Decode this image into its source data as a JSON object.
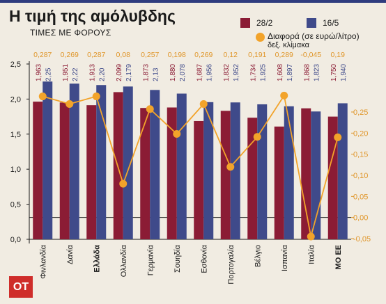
{
  "title": "Η τιμή της αμόλυβδης",
  "subtitle": "ΤΙΜΕΣ ΜΕ ΦΟΡΟΥΣ",
  "logo_text": "ΟΤ",
  "legend": {
    "series1": "28/2",
    "series2": "16/5",
    "diff": "Διαφορά (σε ευρώ/λίτρο)",
    "diff_note": "δεξ. κλίμακα"
  },
  "colors": {
    "series1": "#8b1c35",
    "series2": "#3f4a8a",
    "diff": "#f2a32a",
    "diff_labels": "#e0962a",
    "background": "#f1ece2",
    "logo": "#cf2d2a"
  },
  "chart_data": {
    "type": "bar",
    "categories": [
      "Φινλανδία",
      "Δανία",
      "Ελλάδα",
      "Ολλανδία",
      "Γερμανία",
      "Σουηδία",
      "Εσθονία",
      "Πορτογαλία",
      "Βέλγιο",
      "Ισπανία",
      "Ιταλία",
      "ΜΟ ΕΕ"
    ],
    "bold_categories": [
      "Ελλάδα",
      "ΜΟ ΕΕ"
    ],
    "series": [
      {
        "name": "28/2",
        "values": [
          1.963,
          1.951,
          1.913,
          2.099,
          1.873,
          1.88,
          1.687,
          1.832,
          1.734,
          1.608,
          1.868,
          1.75
        ],
        "labels": [
          "1,963",
          "1,951",
          "1,913",
          "2,099",
          "1,873",
          "1,880",
          "1,687",
          "1,832",
          "1,734",
          "1,608",
          "1,868",
          "1,750"
        ]
      },
      {
        "name": "16/5",
        "values": [
          2.25,
          2.22,
          2.2,
          2.179,
          2.13,
          2.078,
          1.956,
          1.952,
          1.925,
          1.897,
          1.823,
          1.94
        ],
        "labels": [
          "2,25",
          "2,22",
          "2,20",
          "2,179",
          "2,13",
          "2,078",
          "1,956",
          "1,952",
          "1,925",
          "1,897",
          "1,823",
          "1,940"
        ]
      }
    ],
    "diff": {
      "name": "Διαφορά (σε ευρώ/λίτρο)",
      "values": [
        0.287,
        0.269,
        0.287,
        0.08,
        0.257,
        0.198,
        0.269,
        0.12,
        0.191,
        0.289,
        -0.045,
        0.19
      ],
      "labels": [
        "0,287",
        "0,269",
        "0,287",
        "0,08",
        "0,257",
        "0,198",
        "0,269",
        "0,12",
        "0,191",
        "0,289",
        "-0,045",
        "0,19"
      ]
    },
    "y_left": {
      "range": [
        0,
        2.5
      ],
      "ticks": [
        "0,0",
        "0,5",
        "1,0",
        "1,5",
        "2,0",
        "2,5"
      ],
      "tick_values": [
        0,
        0.5,
        1.0,
        1.5,
        2.0,
        2.5
      ]
    },
    "y_right": {
      "range": [
        -0.05,
        0.25
      ],
      "ticks": [
        "-0,05",
        "0,00",
        "0,05",
        "0,10",
        "0,15",
        "0,20",
        "0,25"
      ],
      "tick_values": [
        -0.05,
        0,
        0.05,
        0.1,
        0.15,
        0.2,
        0.25
      ]
    },
    "grid": false,
    "legend_position": "top-right"
  }
}
